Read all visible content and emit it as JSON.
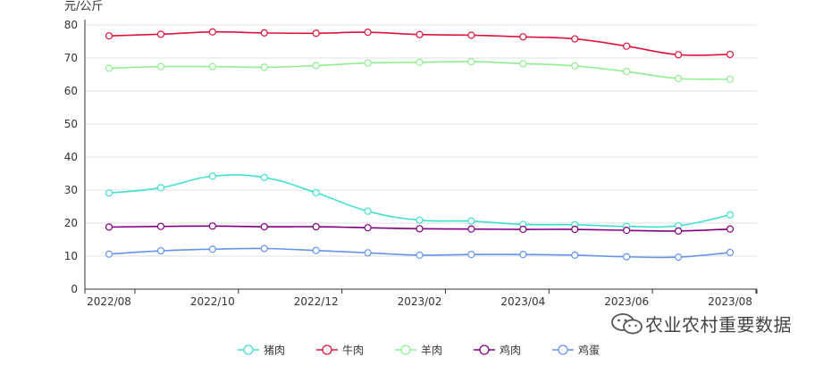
{
  "chart_data": {
    "type": "line",
    "ylabel": "元/公斤",
    "ylim": [
      0,
      80
    ],
    "yticks": [
      0,
      10,
      20,
      30,
      40,
      50,
      60,
      70,
      80
    ],
    "x": [
      "2022/08",
      "2022/09",
      "2022/10",
      "2022/11",
      "2022/12",
      "2023/01",
      "2023/02",
      "2023/03",
      "2023/04",
      "2023/05",
      "2023/06",
      "2023/07",
      "2023/08"
    ],
    "xtick_labels": [
      "2022/08",
      "2022/10",
      "2022/12",
      "2023/02",
      "2023/04",
      "2023/06",
      "2023/08"
    ],
    "grid": true,
    "legend_position": "bottom",
    "series": [
      {
        "name": "猪肉",
        "color": "#40e0d0",
        "values": [
          29.1,
          30.7,
          34.2,
          33.8,
          29.2,
          23.6,
          20.9,
          20.6,
          19.6,
          19.5,
          19.0,
          19.2,
          22.5
        ]
      },
      {
        "name": "牛肉",
        "color": "#dc143c",
        "values": [
          76.7,
          77.2,
          77.9,
          77.6,
          77.5,
          77.8,
          77.1,
          76.9,
          76.4,
          75.8,
          73.6,
          71.0,
          71.1
        ]
      },
      {
        "name": "羊肉",
        "color": "#90ee90",
        "values": [
          66.9,
          67.4,
          67.4,
          67.2,
          67.7,
          68.5,
          68.7,
          68.9,
          68.3,
          67.6,
          65.9,
          63.8,
          63.6
        ]
      },
      {
        "name": "鸡肉",
        "color": "#800080",
        "values": [
          18.8,
          19.0,
          19.1,
          18.9,
          18.9,
          18.6,
          18.3,
          18.2,
          18.1,
          18.1,
          17.8,
          17.6,
          18.2
        ]
      },
      {
        "name": "鸡蛋",
        "color": "#6495ed",
        "values": [
          10.6,
          11.6,
          12.1,
          12.3,
          11.7,
          11.0,
          10.3,
          10.5,
          10.5,
          10.3,
          9.8,
          9.7,
          11.1
        ]
      }
    ]
  },
  "watermark": {
    "text": "农业农村重要数据",
    "icon": "wechat-icon"
  }
}
